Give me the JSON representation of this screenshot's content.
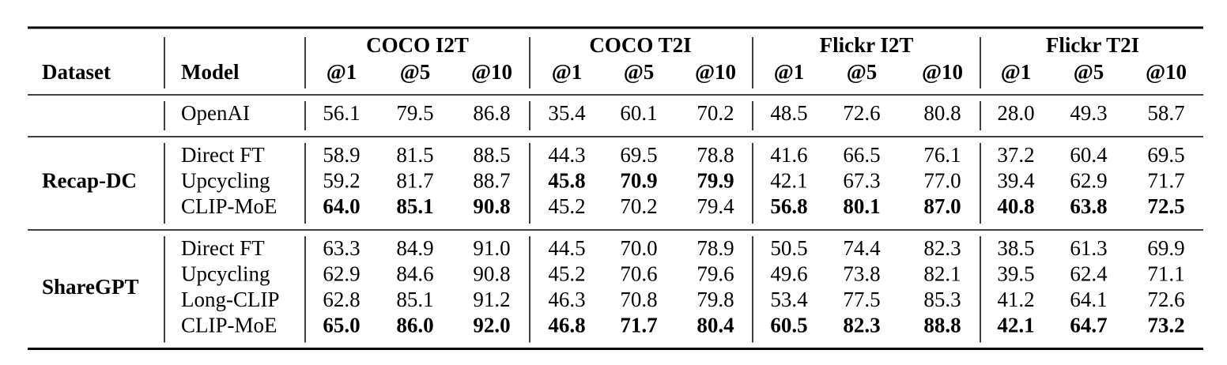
{
  "table": {
    "header": {
      "dataset": "Dataset",
      "model": "Model",
      "groups": [
        {
          "name": "COCO I2T",
          "columns": [
            "@1",
            "@5",
            "@10"
          ]
        },
        {
          "name": "COCO T2I",
          "columns": [
            "@1",
            "@5",
            "@10"
          ]
        },
        {
          "name": "Flickr I2T",
          "columns": [
            "@1",
            "@5",
            "@10"
          ]
        },
        {
          "name": "Flickr T2I",
          "columns": [
            "@1",
            "@5",
            "@10"
          ]
        }
      ]
    },
    "sections": [
      {
        "rows": [
          {
            "model": "OpenAI",
            "values": [
              "56.1",
              "79.5",
              "86.8",
              "35.4",
              "60.1",
              "70.2",
              "48.5",
              "72.6",
              "80.8",
              "28.0",
              "49.3",
              "58.7"
            ],
            "bold": []
          }
        ]
      },
      {
        "dataset": "Recap-DC",
        "rows": [
          {
            "model": "Direct FT",
            "values": [
              "58.9",
              "81.5",
              "88.5",
              "44.3",
              "69.5",
              "78.8",
              "41.6",
              "66.5",
              "76.1",
              "37.2",
              "60.4",
              "69.5"
            ],
            "bold": []
          },
          {
            "model": "Upcycling",
            "values": [
              "59.2",
              "81.7",
              "88.7",
              "45.8",
              "70.9",
              "79.9",
              "42.1",
              "67.3",
              "77.0",
              "39.4",
              "62.9",
              "71.7"
            ],
            "bold": [
              3,
              4,
              5
            ]
          },
          {
            "model": "CLIP-MoE",
            "values": [
              "64.0",
              "85.1",
              "90.8",
              "45.2",
              "70.2",
              "79.4",
              "56.8",
              "80.1",
              "87.0",
              "40.8",
              "63.8",
              "72.5"
            ],
            "bold": [
              0,
              1,
              2,
              6,
              7,
              8,
              9,
              10,
              11
            ]
          }
        ]
      },
      {
        "dataset": "ShareGPT",
        "rows": [
          {
            "model": "Direct FT",
            "values": [
              "63.3",
              "84.9",
              "91.0",
              "44.5",
              "70.0",
              "78.9",
              "50.5",
              "74.4",
              "82.3",
              "38.5",
              "61.3",
              "69.9"
            ],
            "bold": []
          },
          {
            "model": "Upcycling",
            "values": [
              "62.9",
              "84.6",
              "90.8",
              "45.2",
              "70.6",
              "79.6",
              "49.6",
              "73.8",
              "82.1",
              "39.5",
              "62.4",
              "71.1"
            ],
            "bold": []
          },
          {
            "model": "Long-CLIP",
            "values": [
              "62.8",
              "85.1",
              "91.2",
              "46.3",
              "70.8",
              "79.8",
              "53.4",
              "77.5",
              "85.3",
              "41.2",
              "64.1",
              "72.6"
            ],
            "bold": []
          },
          {
            "model": "CLIP-MoE",
            "values": [
              "65.0",
              "86.0",
              "92.0",
              "46.8",
              "71.7",
              "80.4",
              "60.5",
              "82.3",
              "88.8",
              "42.1",
              "64.7",
              "73.2"
            ],
            "bold": [
              0,
              1,
              2,
              3,
              4,
              5,
              6,
              7,
              8,
              9,
              10,
              11
            ]
          }
        ]
      }
    ]
  }
}
